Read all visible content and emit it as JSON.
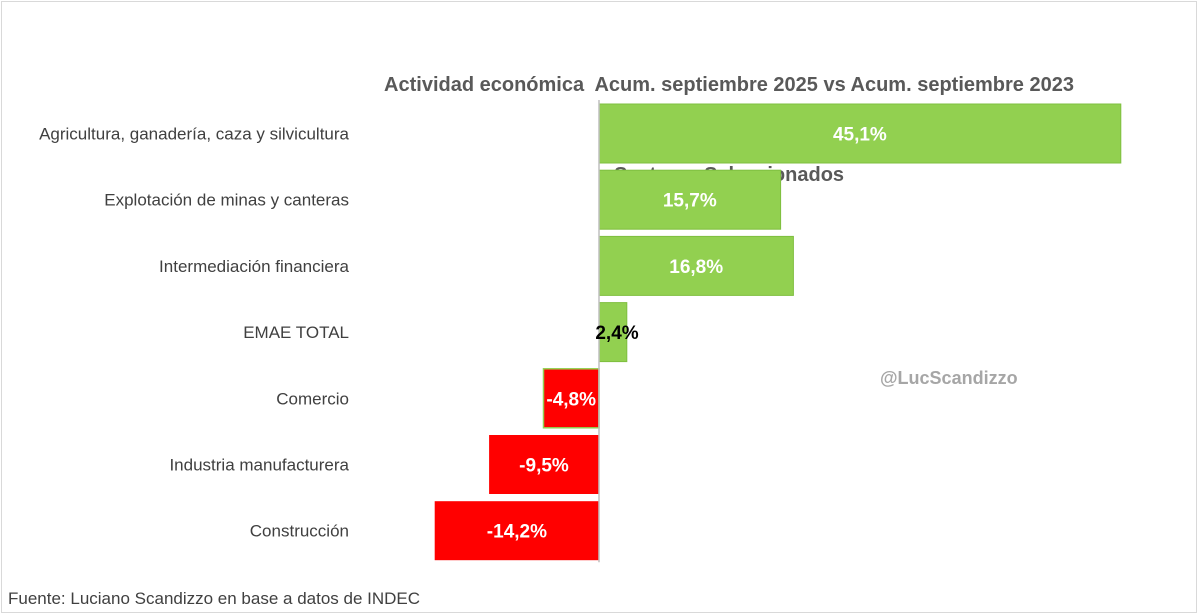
{
  "chart_data": {
    "type": "bar",
    "orientation": "horizontal",
    "title": "Actividad económica  Acum. septiembre 2025 vs Acum. septiembre 2023",
    "subtitle": "Sectores Seleccionados",
    "categories": [
      "Agricultura, ganadería, caza y silvicultura",
      "Explotación de minas y canteras",
      "Intermediación financiera",
      "EMAE TOTAL",
      "Comercio",
      "Industria manufacturera",
      "Construcción"
    ],
    "values": [
      45.1,
      15.7,
      16.8,
      2.4,
      -4.8,
      -9.5,
      -14.2
    ],
    "data_labels": [
      "45,1%",
      "15,7%",
      "16,8%",
      "2,4%",
      "-4,8%",
      "-9,5%",
      "-14,2%"
    ],
    "colors": {
      "positive": "#92d050",
      "negative": "#ff0000",
      "positive_border": "#7fbf3f",
      "axis": "#bfbfbf"
    },
    "xlim": [
      -14.2,
      45.1
    ],
    "grid": false,
    "legend": "none"
  },
  "watermark": "@LucScandizzo",
  "source": "Fuente: Luciano Scandizzo en base a datos de INDEC"
}
